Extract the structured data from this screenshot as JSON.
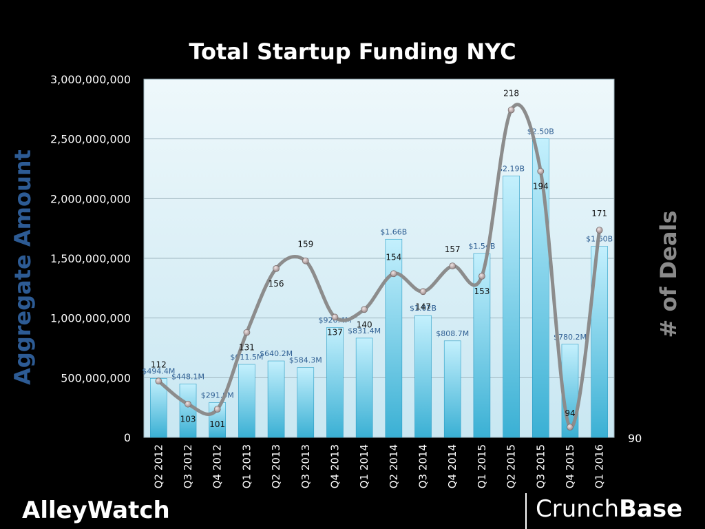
{
  "chart_data": {
    "type": "bar",
    "title": "Total Startup Funding NYC",
    "ylabel": "Aggregate  Amount",
    "y2label": "# of Deals",
    "ylim": [
      0,
      3000000000
    ],
    "yticks": [
      "0",
      "500,000,000",
      "1,000,000,000",
      "1,500,000,000",
      "2,000,000,000",
      "2,500,000,000",
      "3,000,000,000"
    ],
    "y2min_label": "90",
    "y2lim": [
      90,
      230
    ],
    "categories": [
      "Q2 2012",
      "Q3 2012",
      "Q4 2012",
      "Q1 2013",
      "Q2 2013",
      "Q3 2013",
      "Q4 2013",
      "Q1 2014",
      "Q2 2014",
      "Q3 2014",
      "Q4 2014",
      "Q1 2015",
      "Q2 2015",
      "Q3 2015",
      "Q4 2015",
      "Q1 2016"
    ],
    "series": [
      {
        "name": "Aggregate  Amount",
        "type": "bar",
        "values": [
          494400000,
          448100000,
          291900000,
          611500000,
          640200000,
          584300000,
          920400000,
          831400000,
          1660000000,
          1020000000,
          808700000,
          1540000000,
          2190000000,
          2500000000,
          780200000,
          1600000000
        ],
        "labels": [
          "$494.4M",
          "$448.1M",
          "$291.9M",
          "$611.5M",
          "$640.2M",
          "$584.3M",
          "$920.4M",
          "$831.4M",
          "$1.66B",
          "$1.02B",
          "$808.7M",
          "$1.54B",
          "$2.19B",
          "$2.50B",
          "$780.2M",
          "$1.60B"
        ]
      },
      {
        "name": "# of Deals",
        "type": "line",
        "axis": "right",
        "values": [
          112,
          103,
          101,
          131,
          156,
          159,
          137,
          140,
          154,
          147,
          157,
          153,
          218,
          194,
          94,
          171
        ]
      }
    ],
    "legend": "none",
    "grid": true
  },
  "colors": {
    "background": "#000000",
    "plot_background": "#d8eef7",
    "bar_top": "#bfeefc",
    "bar_bottom": "#3fb3d6",
    "line": "#8c8c8c",
    "left_axis_label": "#2d5b94",
    "right_axis_label": "#8a8a8a"
  },
  "logos": {
    "left": "AlleyWatch",
    "right_regular": "Crunch",
    "right_bold": "Base"
  }
}
